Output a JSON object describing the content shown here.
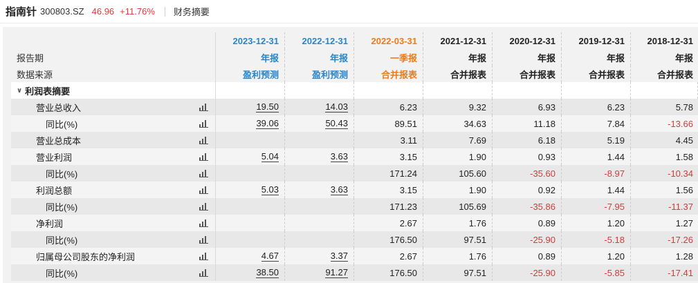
{
  "header": {
    "stock_name": "指南针",
    "stock_code": "300803.SZ",
    "price": "46.96",
    "change": "+11.76%",
    "tab": "财务摘要"
  },
  "table": {
    "row_labels": {
      "period": "报告期",
      "source": "数据来源",
      "section": "利润表摘要"
    },
    "columns": [
      {
        "date": "2023-12-31",
        "period": "年报",
        "source": "盈利预测",
        "color": "#2a86c9"
      },
      {
        "date": "2022-12-31",
        "period": "年报",
        "source": "盈利预测",
        "color": "#2a86c9"
      },
      {
        "date": "2022-03-31",
        "period": "一季报",
        "source": "合并报表",
        "color": "#ec7c19"
      },
      {
        "date": "2021-12-31",
        "period": "年报",
        "source": "合并报表",
        "color": "#222222"
      },
      {
        "date": "2020-12-31",
        "period": "年报",
        "source": "合并报表",
        "color": "#222222"
      },
      {
        "date": "2019-12-31",
        "period": "年报",
        "source": "合并报表",
        "color": "#222222"
      },
      {
        "date": "2018-12-31",
        "period": "年报",
        "source": "合并报表",
        "color": "#222222"
      }
    ],
    "rows": [
      {
        "label": "营业总收入",
        "sub": false,
        "values": [
          "19.50",
          "14.03",
          "6.23",
          "9.32",
          "6.93",
          "6.23",
          "5.78"
        ]
      },
      {
        "label": "同比(%)",
        "sub": true,
        "values": [
          "39.06",
          "50.43",
          "89.51",
          "34.63",
          "11.18",
          "7.84",
          "-13.66"
        ]
      },
      {
        "label": "营业总成本",
        "sub": false,
        "values": [
          "",
          "",
          "3.11",
          "7.69",
          "6.18",
          "5.19",
          "4.45"
        ]
      },
      {
        "label": "营业利润",
        "sub": false,
        "values": [
          "5.04",
          "3.63",
          "3.15",
          "1.90",
          "0.93",
          "1.44",
          "1.58"
        ]
      },
      {
        "label": "同比(%)",
        "sub": true,
        "values": [
          "",
          "",
          "171.24",
          "105.60",
          "-35.60",
          "-8.97",
          "-10.34"
        ]
      },
      {
        "label": "利润总额",
        "sub": false,
        "values": [
          "5.03",
          "3.63",
          "3.15",
          "1.90",
          "0.92",
          "1.44",
          "1.56"
        ]
      },
      {
        "label": "同比(%)",
        "sub": true,
        "values": [
          "",
          "",
          "171.23",
          "105.69",
          "-35.86",
          "-7.95",
          "-11.37"
        ]
      },
      {
        "label": "净利润",
        "sub": false,
        "values": [
          "",
          "",
          "2.67",
          "1.76",
          "0.89",
          "1.20",
          "1.27"
        ]
      },
      {
        "label": "同比(%)",
        "sub": true,
        "values": [
          "",
          "",
          "176.50",
          "97.51",
          "-25.90",
          "-5.18",
          "-17.26"
        ]
      },
      {
        "label": "归属母公司股东的净利润",
        "sub": false,
        "values": [
          "4.67",
          "3.37",
          "2.67",
          "1.76",
          "0.89",
          "1.20",
          "1.28"
        ]
      },
      {
        "label": "同比(%)",
        "sub": true,
        "values": [
          "38.50",
          "91.27",
          "176.50",
          "97.51",
          "-25.90",
          "-5.85",
          "-17.41"
        ]
      }
    ]
  },
  "icons": {
    "row_chart": "bar-chart-icon",
    "section_toggle": "chevron-down-icon"
  },
  "colors": {
    "positive": "#e03a3a",
    "negative": "#d33a3a",
    "forecast": "#2a86c9",
    "quarterly": "#ec7c19"
  }
}
